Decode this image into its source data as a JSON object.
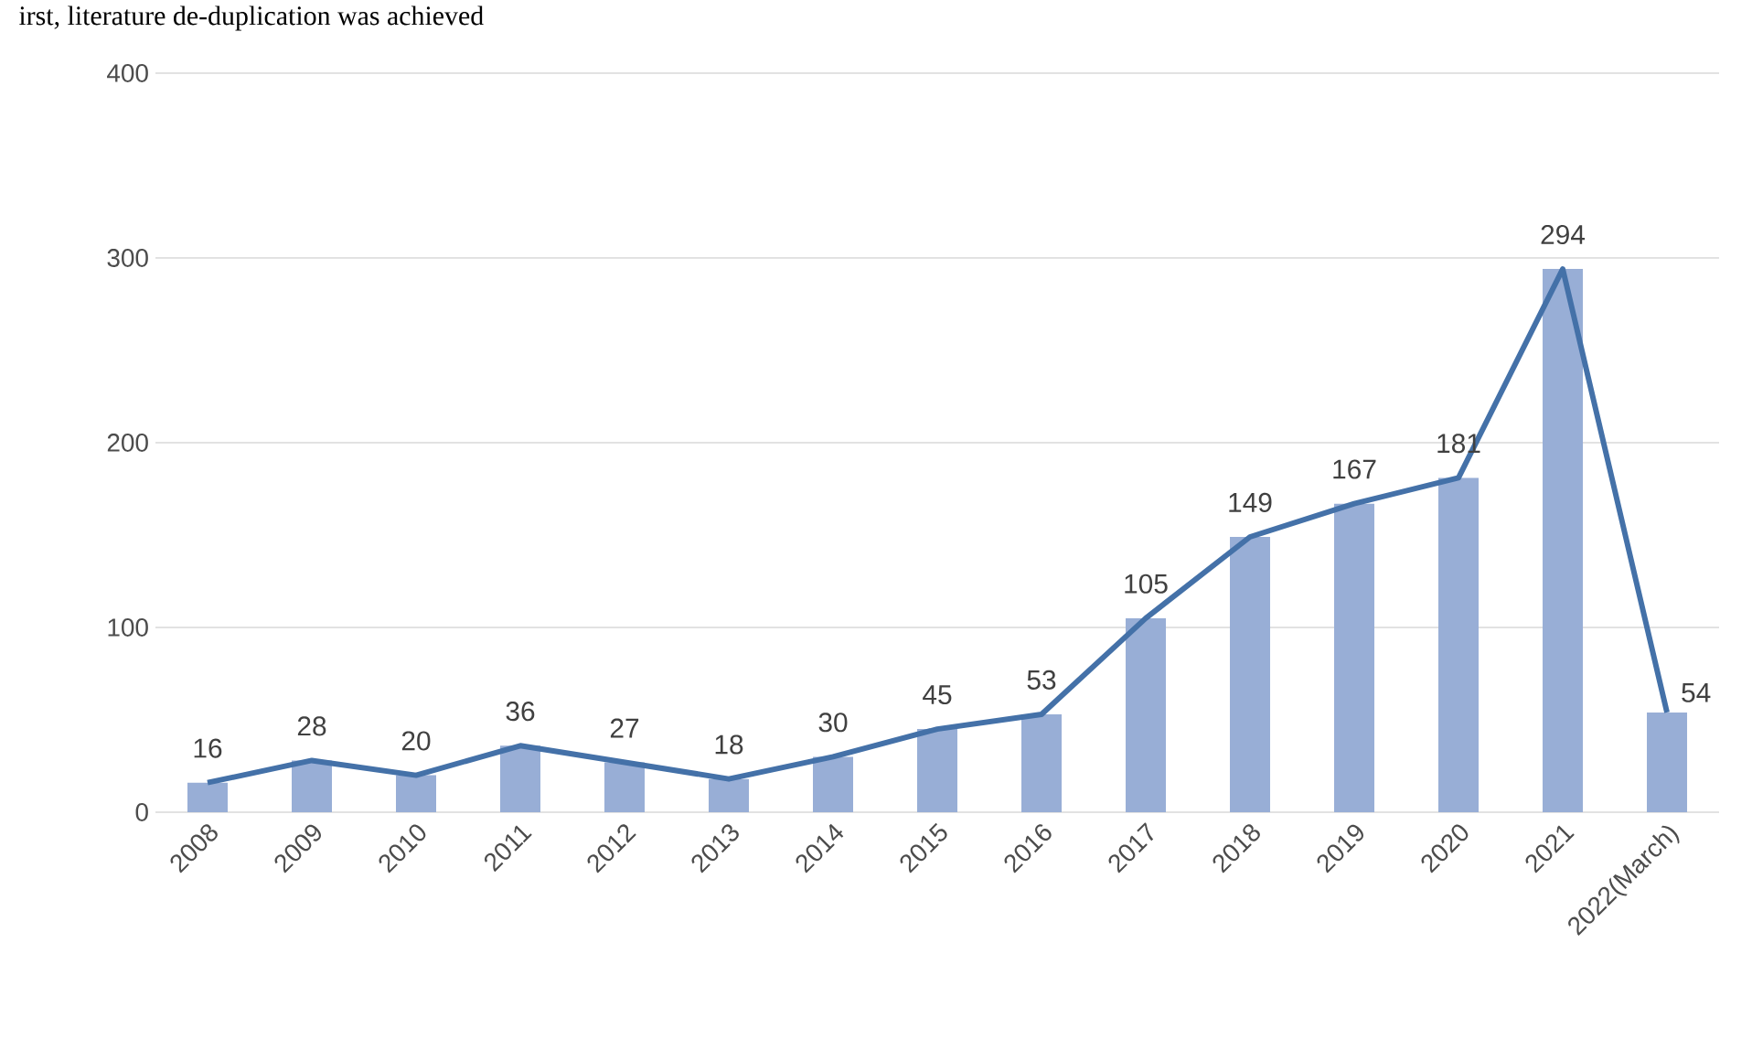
{
  "chart_data": {
    "type": "bar",
    "annotations": [
      "irst, literature de-duplication was achieved"
    ],
    "categories": [
      "2008",
      "2009",
      "2010",
      "2011",
      "2012",
      "2013",
      "2014",
      "2015",
      "2016",
      "2017",
      "2018",
      "2019",
      "2020",
      "2021",
      "2022(March)"
    ],
    "series": [
      {
        "color": "#98aed6",
        "values": [
          16,
          28,
          20,
          36,
          27,
          18,
          30,
          45,
          53,
          105,
          149,
          167,
          181,
          294,
          54
        ]
      },
      {
        "type": "line",
        "color": "#4471a8",
        "values": [
          16,
          28,
          20,
          36,
          27,
          18,
          30,
          45,
          53,
          105,
          149,
          167,
          181,
          294,
          54
        ],
        "value_labels": [
          "16",
          "28",
          "20",
          "36",
          "27",
          "18",
          "30",
          "45",
          "53",
          "105",
          "149",
          "167",
          "181",
          "294",
          "54"
        ]
      }
    ],
    "ylim": [
      0,
      400
    ],
    "yticks": [
      0,
      100,
      200,
      300,
      400
    ],
    "grid": "y"
  }
}
